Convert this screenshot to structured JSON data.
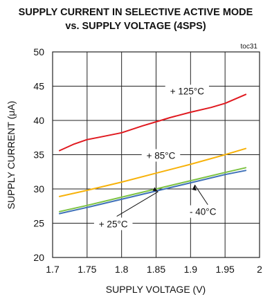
{
  "chart_data": {
    "type": "line",
    "title_lines": [
      "SUPPLY CURRENT IN SELECTIVE ACTIVE MODE",
      "vs. SUPPLY VOLTAGE (4SPS)"
    ],
    "figure_code": "toc31",
    "xlabel": "SUPPLY VOLTAGE (V)",
    "ylabel": "SUPPLY CURRENT (μA)",
    "xlim": [
      1.7,
      2.0
    ],
    "ylim": [
      20,
      50
    ],
    "x_ticks": [
      "1.7",
      "1.75",
      "1.8",
      "1.85",
      "1.9",
      "1.95",
      "2"
    ],
    "y_ticks": [
      "50",
      "45",
      "40",
      "35",
      "30",
      "25",
      "20"
    ],
    "grid": true,
    "series": [
      {
        "name": "+ 125°C",
        "color": "#e0191f",
        "x": [
          1.71,
          1.73,
          1.75,
          1.77,
          1.8,
          1.83,
          1.85,
          1.87,
          1.9,
          1.93,
          1.95,
          1.98
        ],
        "y": [
          35.6,
          36.5,
          37.2,
          37.6,
          38.2,
          39.2,
          39.8,
          40.4,
          41.2,
          41.9,
          42.5,
          43.8
        ]
      },
      {
        "name": "+ 85°C",
        "color": "#f7b20a",
        "x": [
          1.71,
          1.75,
          1.8,
          1.85,
          1.9,
          1.95,
          1.98
        ],
        "y": [
          28.9,
          29.8,
          31.0,
          32.3,
          33.6,
          35.0,
          35.9
        ]
      },
      {
        "name": "+ 25°C",
        "color": "#7cc242",
        "x": [
          1.71,
          1.75,
          1.8,
          1.85,
          1.9,
          1.95,
          1.98
        ],
        "y": [
          26.7,
          27.6,
          28.8,
          30.0,
          31.2,
          32.4,
          33.1
        ]
      },
      {
        "name": "- 40°C",
        "color": "#3f71b8",
        "x": [
          1.71,
          1.75,
          1.8,
          1.85,
          1.9,
          1.95,
          1.98
        ],
        "y": [
          26.4,
          27.3,
          28.5,
          29.7,
          30.9,
          32.1,
          32.7
        ]
      }
    ],
    "annotations": [
      {
        "text": "+ 125°C",
        "x": 1.895,
        "y": 44.0
      },
      {
        "text": "+ 85°C",
        "x": 1.857,
        "y": 34.6
      },
      {
        "text": "+ 25°C",
        "x": 1.788,
        "y": 24.6
      },
      {
        "text": "- 40°C",
        "x": 1.918,
        "y": 26.4
      }
    ]
  }
}
